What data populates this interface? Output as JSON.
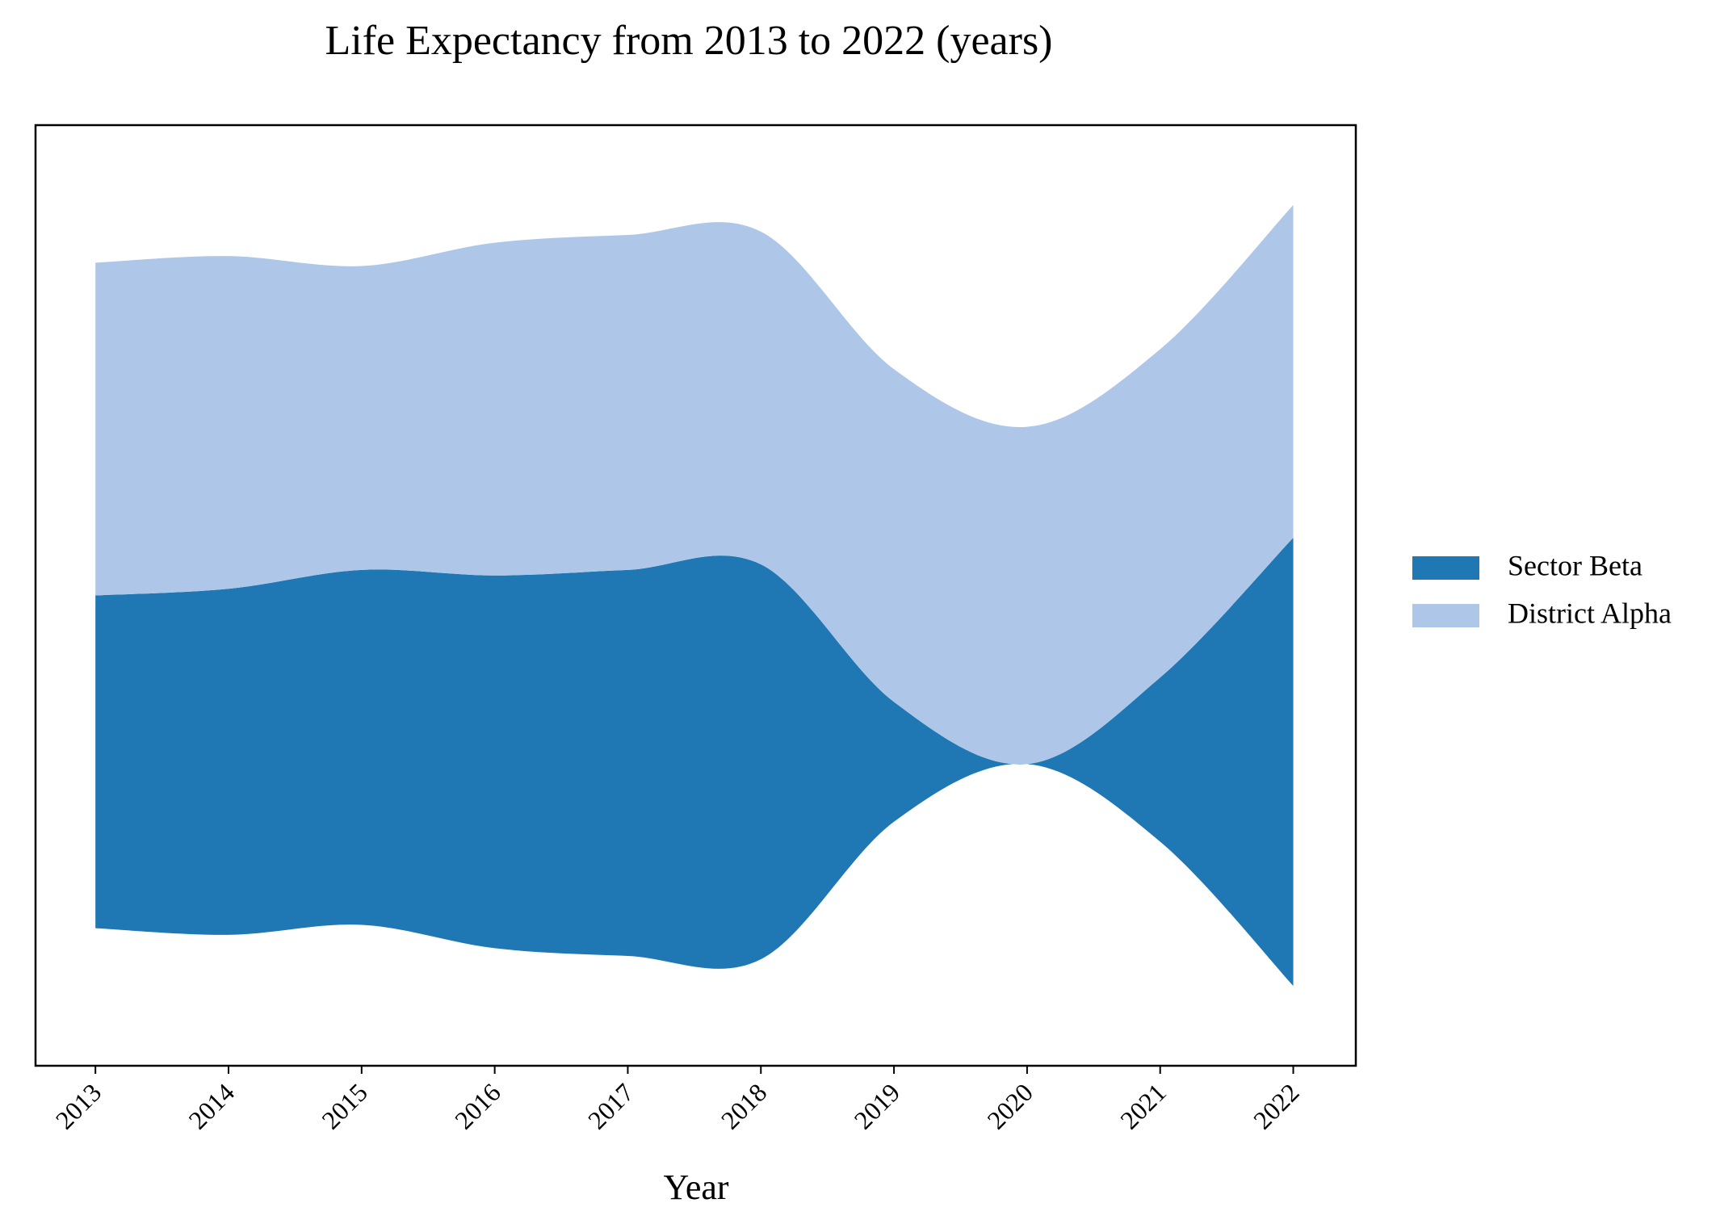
{
  "chart_data": {
    "type": "streamgraph",
    "title": "Life Expectancy from 2013 to 2022 (years)",
    "x_label": "Year",
    "x": [
      2013,
      2014,
      2015,
      2016,
      2017,
      2018,
      2019,
      2020,
      2021,
      2022
    ],
    "xlim": [
      2012.55,
      2022.47
    ],
    "xticks": [
      2013,
      2014,
      2015,
      2016,
      2017,
      2018,
      2019,
      2020,
      2021,
      2022
    ],
    "ylim": [
      -106,
      106
    ],
    "baseline": "symmetric",
    "legend": "right",
    "series": [
      {
        "name": "Sector Beta",
        "color": "#1f77b4",
        "values": [
          75,
          78,
          80,
          84,
          87,
          89,
          27,
          0,
          37,
          101
        ]
      },
      {
        "name": "District Alpha",
        "color": "#aec7e8",
        "values": [
          75,
          75,
          68.5,
          75,
          75.5,
          75,
          75,
          76,
          74,
          75
        ]
      }
    ]
  }
}
